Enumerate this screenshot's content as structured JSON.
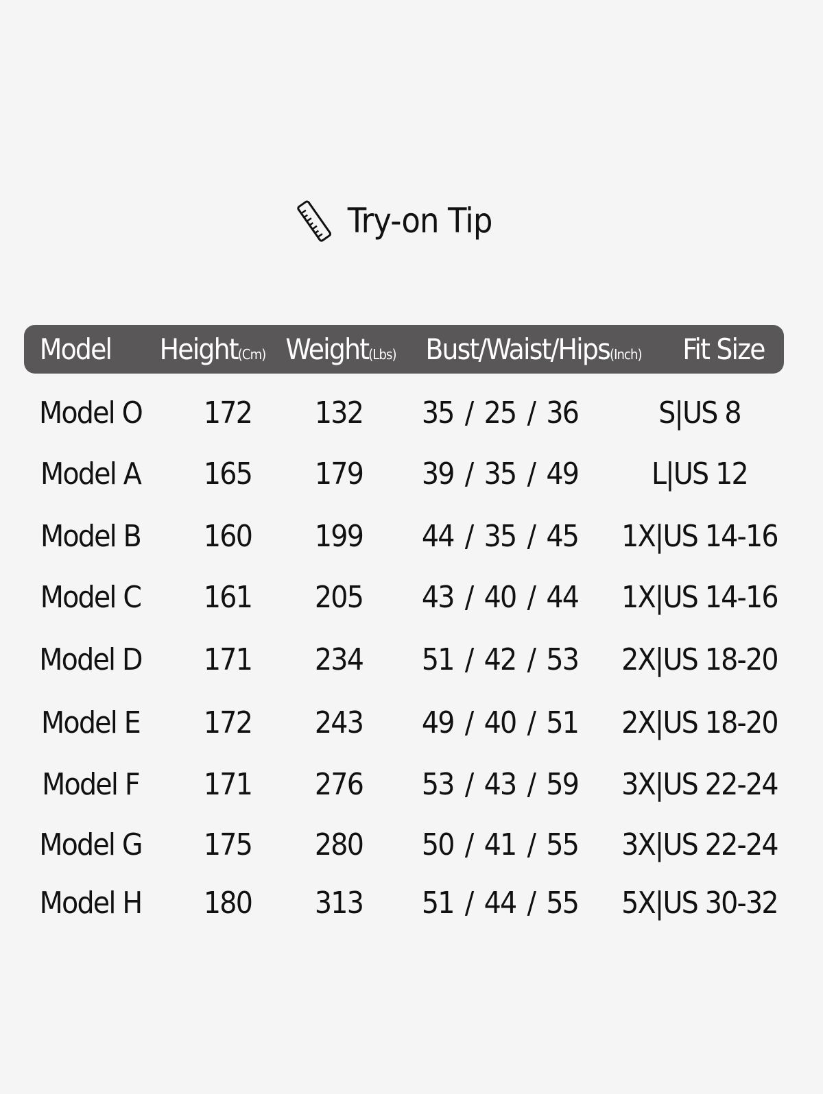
{
  "title": {
    "icon": "ruler-icon",
    "text": "Try-on Tip"
  },
  "header": {
    "model": "Model",
    "height": "Height",
    "height_unit": "(Cm)",
    "weight": "Weight",
    "weight_unit": "(Lbs)",
    "bwh": "Bust/Waist/Hips",
    "bwh_unit": "(Inch)",
    "fit": "Fit Size",
    "bg_color": "#595757"
  },
  "rows": [
    {
      "model": "Model O",
      "height": "172",
      "weight": "132",
      "bust": "35",
      "waist": "25",
      "hips": "36",
      "fit": "S|US 8"
    },
    {
      "model": "Model A",
      "height": "165",
      "weight": "179",
      "bust": "39",
      "waist": "35",
      "hips": "49",
      "fit": "L|US 12"
    },
    {
      "model": "Model B",
      "height": "160",
      "weight": "199",
      "bust": "44",
      "waist": "35",
      "hips": "45",
      "fit": "1X|US 14-16"
    },
    {
      "model": "Model C",
      "height": "161",
      "weight": "205",
      "bust": "43",
      "waist": "40",
      "hips": "44",
      "fit": "1X|US 14-16"
    },
    {
      "model": "Model D",
      "height": "171",
      "weight": "234",
      "bust": "51",
      "waist": "42",
      "hips": "53",
      "fit": "2X|US 18-20"
    },
    {
      "model": "Model E",
      "height": "172",
      "weight": "243",
      "bust": "49",
      "waist": "40",
      "hips": "51",
      "fit": "2X|US 18-20"
    },
    {
      "model": "Model F",
      "height": "171",
      "weight": "276",
      "bust": "53",
      "waist": "43",
      "hips": "59",
      "fit": "3X|US 22-24"
    },
    {
      "model": "Model G",
      "height": "175",
      "weight": "280",
      "bust": "50",
      "waist": "41",
      "hips": "55",
      "fit": "3X|US 22-24"
    },
    {
      "model": "Model H",
      "height": "180",
      "weight": "313",
      "bust": "51",
      "waist": "44",
      "hips": "55",
      "fit": "5X|US 30-32"
    }
  ],
  "separator": "/"
}
